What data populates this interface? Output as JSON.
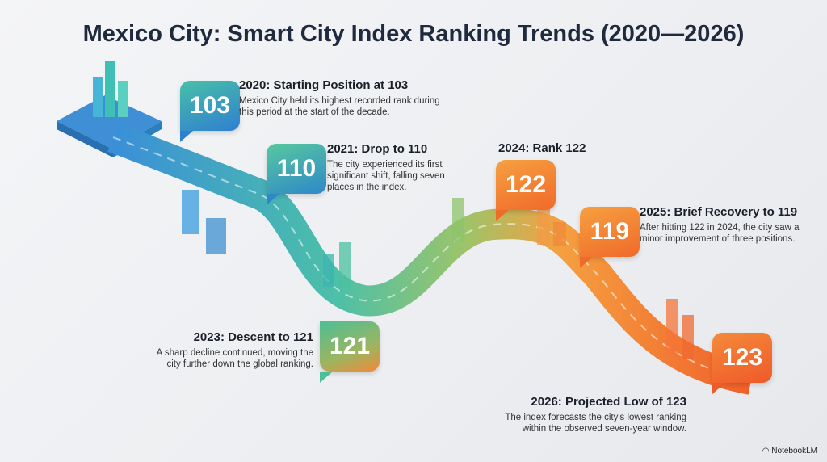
{
  "title": "Mexico City: Smart City Index Ranking Trends (2020—2026)",
  "colors": {
    "start": "#2f8fd0",
    "mid": "#4fbf9a",
    "end": "#f26a2a"
  },
  "milestones": [
    {
      "year": 2020,
      "rank": "103",
      "heading": "2020: Starting Position at 103",
      "text": "Mexico City held its highest recorded rank during this period at the start of the decade."
    },
    {
      "year": 2021,
      "rank": "110",
      "heading": "2021: Drop to 110",
      "text": "The city experienced its first significant shift, falling seven places in the index."
    },
    {
      "year": 2023,
      "rank": "121",
      "heading": "2023: Descent to 121",
      "text": "A sharp decline continued, moving the city further down the global ranking."
    },
    {
      "year": 2024,
      "rank": "122",
      "heading": "2024: Rank 122",
      "text": ""
    },
    {
      "year": 2025,
      "rank": "119",
      "heading": "2025: Brief Recovery to 119",
      "text": "After hitting 122 in 2024, the city saw a minor improvement of three positions."
    },
    {
      "year": 2026,
      "rank": "123",
      "heading": "2026: Projected Low of 123",
      "text": "The index forecasts the city's lowest ranking within the observed seven-year window."
    }
  ],
  "brand": "NotebookLM"
}
